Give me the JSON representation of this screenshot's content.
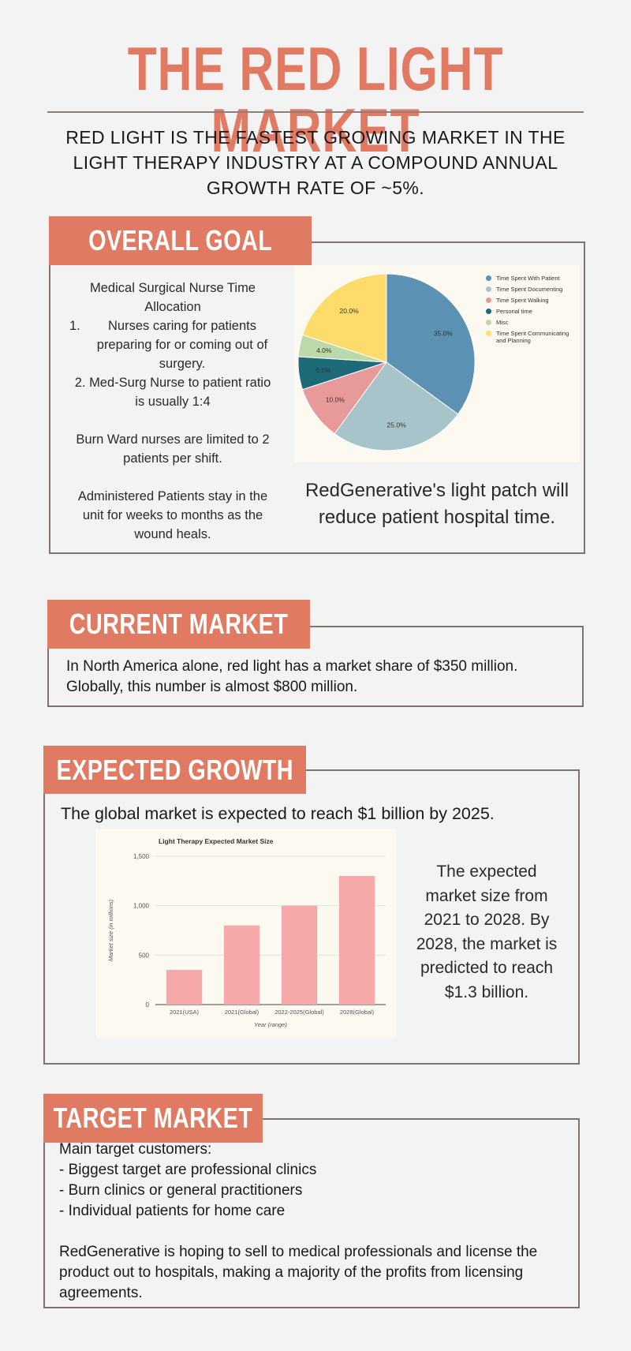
{
  "header": {
    "title": "THE RED LIGHT MARKET",
    "subtitle_lines": [
      "RED LIGHT IS THE FASTEST GROWING MARKET IN THE",
      "LIGHT THERAPY INDUSTRY AT A COMPOUND ANNUAL",
      "GROWTH RATE OF ~5%."
    ]
  },
  "colors": {
    "accent": "#e07a62",
    "border": "#7d7472",
    "background": "#f3f3f3"
  },
  "overall_goal": {
    "heading": "OVERALL GOAL",
    "allocation_title_1": "Medical Surgical Nurse Time",
    "allocation_title_2": "Allocation",
    "item1_num": "1.",
    "item1_line1": "Nurses caring for patients",
    "item1_line2": "preparing for or coming out of",
    "item1_line3": "surgery.",
    "item2_line1": "2.  Med-Surg Nurse to patient ratio",
    "item2_line2": "is usually 1:4",
    "burn_line1": "Burn Ward nurses are limited to 2",
    "burn_line2": "patients per shift.",
    "admin_line1": "Administered Patients stay in the",
    "admin_line2": "unit for weeks to months as the",
    "admin_line3": "wound heals.",
    "patch_line1": "RedGenerative's light patch will",
    "patch_line2": "reduce patient hospital time."
  },
  "current_market": {
    "heading": "CURRENT MARKET",
    "line1": "In North America alone, red light has a market share of $350 million.",
    "line2": "Globally, this number is almost $800 million."
  },
  "expected_growth": {
    "heading": "EXPECTED GROWTH",
    "lead": "The global market is expected to reach $1 billion by 2025.",
    "side_lines": [
      "The expected",
      "market size from",
      "2021 to 2028. By",
      "2028, the market is",
      "predicted to reach",
      "$1.3 billion."
    ]
  },
  "target_market": {
    "heading": "TARGET MARKET",
    "lines": [
      "Main target customers:",
      "- Biggest target are professional clinics",
      "- Burn clinics or general practitioners",
      "- Individual patients for home care"
    ],
    "para_lines": [
      "RedGenerative is hoping to sell to medical professionals and license the",
      "product out to hospitals, making a majority of the profits from licensing",
      "agreements."
    ]
  },
  "chart_data": [
    {
      "type": "pie",
      "title": "",
      "slices": [
        {
          "label": "Time Spent With Patient",
          "value": 35.0,
          "color": "#5b91b3"
        },
        {
          "label": "Time Spent Documenting",
          "value": 25.0,
          "color": "#a6c4c9"
        },
        {
          "label": "Time Spent Walking",
          "value": 10.0,
          "color": "#e89a9b"
        },
        {
          "label": "Personal time",
          "value": 6.0,
          "color": "#1d6a78"
        },
        {
          "label": "Misc",
          "value": 4.0,
          "color": "#bcd9a9"
        },
        {
          "label": "Time Spent Communicating and Planning",
          "value": 20.0,
          "color": "#fddc6c"
        }
      ],
      "data_labels": [
        "35.0%",
        "25.0%",
        "10.0%",
        "6.0%",
        "4.0%",
        "20.0%"
      ],
      "legend_position": "right"
    },
    {
      "type": "bar",
      "title": "Light Therapy Expected Market Size",
      "categories": [
        "2021(USA)",
        "2021(Global)",
        "2022-2025(Global)",
        "2028(Global)"
      ],
      "values": [
        350,
        800,
        1000,
        1300
      ],
      "xlabel": "Year (range)",
      "ylabel": "Market size (in millions)",
      "ylim": [
        0,
        1500
      ],
      "yticks": [
        "0",
        "500",
        "1,000",
        "1,500"
      ],
      "grid": true,
      "bar_color": "#f7a8a8"
    }
  ]
}
